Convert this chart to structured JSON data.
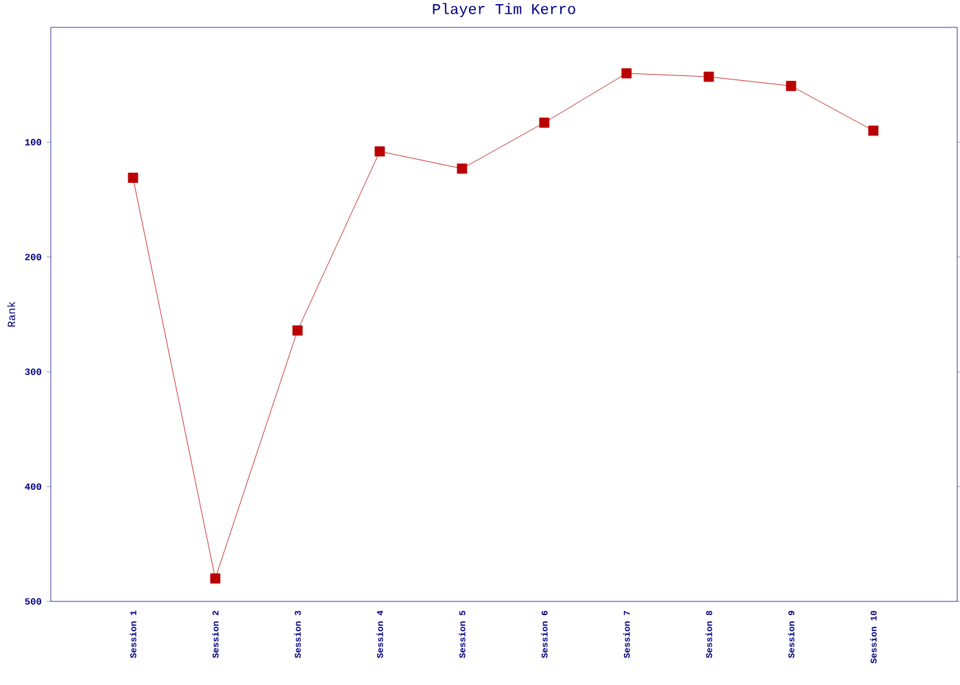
{
  "chart_data": {
    "type": "line",
    "title": "Player Tim Kerro",
    "ylabel": "Rank",
    "categories": [
      "Session 1",
      "Session 2",
      "Session 3",
      "Session 4",
      "Session 5",
      "Session 6",
      "Session 7",
      "Session 8",
      "Session 9",
      "Session 10"
    ],
    "series": [
      {
        "color": "#bb0000",
        "values": [
          131,
          480,
          264,
          108,
          123,
          83,
          40,
          43,
          51,
          90
        ]
      }
    ],
    "ylim": [
      500,
      0
    ],
    "yticks": [
      100,
      200,
      300,
      400,
      500
    ],
    "marker": "square",
    "line_style": "solid"
  }
}
